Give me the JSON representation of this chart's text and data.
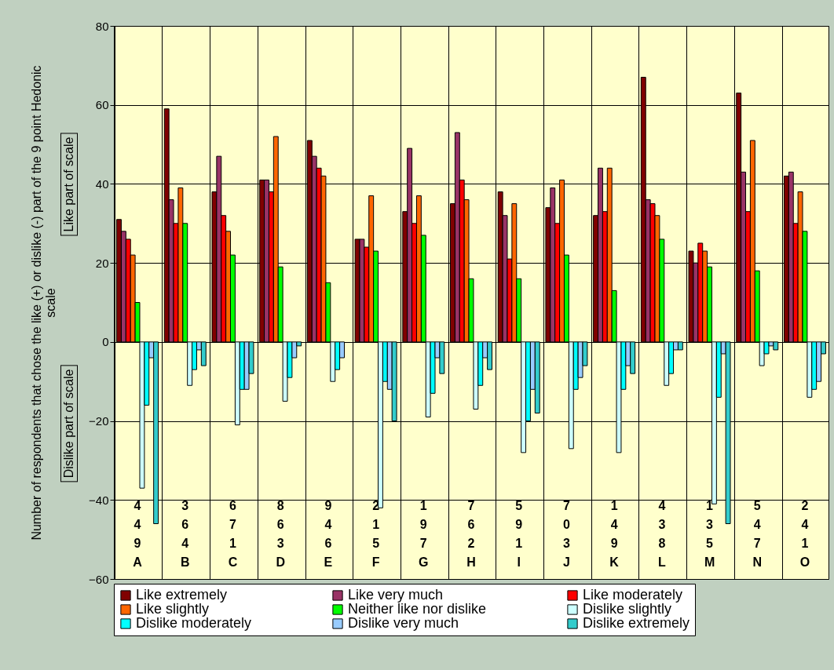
{
  "chart_data": {
    "type": "bar",
    "ylabel": "Number of respondents that chose the like (+) or dislike (-) part of the 9 point Hedonic scale",
    "annotations": [
      "Like part of scale",
      "Dislike part of scale"
    ],
    "categories": [
      "449A",
      "364B",
      "671C",
      "863D",
      "946E",
      "215F",
      "197G",
      "762H",
      "591I",
      "703J",
      "149K",
      "438L",
      "135M",
      "547N",
      "241O"
    ],
    "series": [
      {
        "name": "Like extremely",
        "color": "#800000",
        "values": [
          31,
          59,
          38,
          41,
          51,
          26,
          33,
          35,
          38,
          34,
          32,
          67,
          23,
          63,
          42
        ]
      },
      {
        "name": "Like very much",
        "color": "#993366",
        "values": [
          28,
          36,
          47,
          41,
          47,
          26,
          49,
          53,
          32,
          39,
          44,
          36,
          20,
          43,
          43
        ]
      },
      {
        "name": "Like moderately",
        "color": "#ff0000",
        "values": [
          26,
          30,
          32,
          38,
          44,
          24,
          30,
          41,
          21,
          30,
          33,
          35,
          25,
          33,
          30
        ]
      },
      {
        "name": "Like slightly",
        "color": "#ff6600",
        "values": [
          22,
          39,
          28,
          52,
          42,
          37,
          37,
          36,
          35,
          41,
          44,
          32,
          23,
          51,
          38
        ]
      },
      {
        "name": "Neither like nor dislike",
        "color": "#00ff00",
        "values": [
          10,
          30,
          22,
          19,
          15,
          23,
          27,
          16,
          16,
          22,
          13,
          26,
          19,
          18,
          28
        ]
      },
      {
        "name": "Dislike slightly",
        "color": "#ccffff",
        "values": [
          -37,
          -11,
          -21,
          -15,
          -10,
          -42,
          -19,
          -17,
          -28,
          -27,
          -28,
          -11,
          -41,
          -6,
          -14
        ]
      },
      {
        "name": "Dislike moderately",
        "color": "#00ffff",
        "values": [
          -16,
          -7,
          -12,
          -9,
          -7,
          -10,
          -13,
          -11,
          -20,
          -12,
          -12,
          -8,
          -14,
          -3,
          -12
        ]
      },
      {
        "name": "Dislike very much",
        "color": "#99ccff",
        "values": [
          -4,
          -2,
          -12,
          -4,
          -4,
          -12,
          -4,
          -4,
          -12,
          -9,
          -6,
          -2,
          -3,
          -1,
          -10
        ]
      },
      {
        "name": "Dislike extremely",
        "color": "#33cccc",
        "values": [
          -46,
          -6,
          -8,
          -1,
          null,
          -20,
          -8,
          -7,
          -18,
          -6,
          -8,
          -2,
          -46,
          -2,
          -3
        ]
      }
    ],
    "ylim": [
      -60,
      80
    ],
    "yticks": [
      -60,
      -40,
      -20,
      0,
      20,
      40,
      60,
      80
    ],
    "grid": true,
    "legend": "bottom"
  }
}
